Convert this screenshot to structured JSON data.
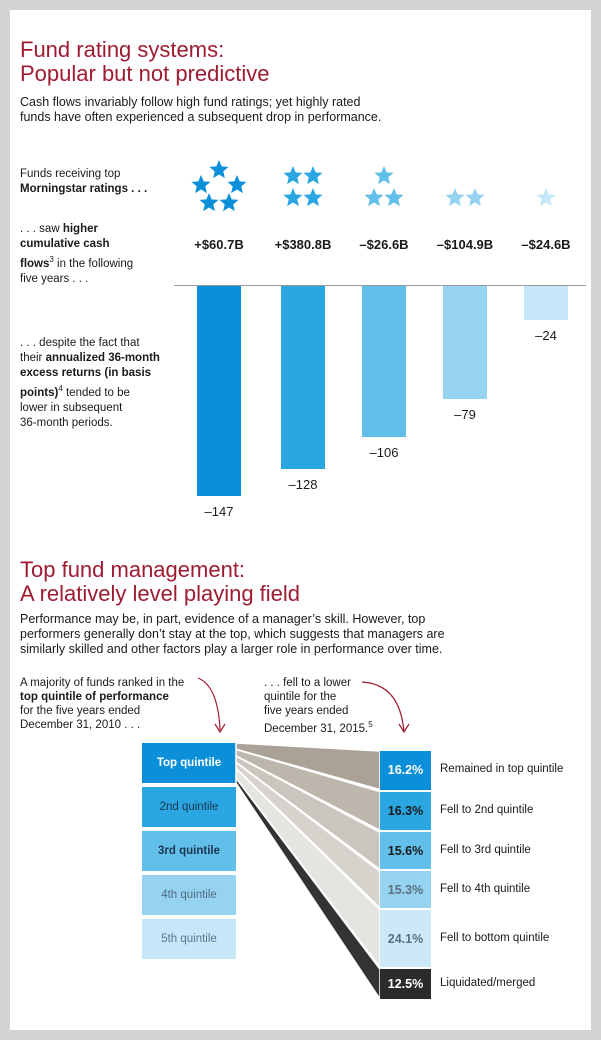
{
  "section1": {
    "title_line1": "Fund rating systems:",
    "title_line2": "Popular but not predictive",
    "subtitle_line1": "Cash flows invariably follow high fund ratings; yet highly rated",
    "subtitle_line2": "funds have often experienced a subsequent drop in performance.",
    "label_ratings_line1": "Funds receiving top",
    "label_ratings_line2": "Morningstar ratings . . .",
    "label_flows_line1_a": ". . . saw ",
    "label_flows_line1_b": "higher",
    "label_flows_line2": "cumulative cash",
    "label_flows_line3_a": "flows",
    "label_flows_line3_sup": "3",
    "label_flows_line3_b": " in the following",
    "label_flows_line4": "five years . . .",
    "label_returns_line1": ". . . despite the fact that",
    "label_returns_line2_a": "their ",
    "label_returns_line2_b": "annualized 36-month",
    "label_returns_line3": "excess returns (in basis",
    "label_returns_line4_a": "points)",
    "label_returns_line4_sup": "4",
    "label_returns_line4_b": " tended to be",
    "label_returns_line5": "lower in subsequent",
    "label_returns_line6": "36-month periods."
  },
  "chart_data": [
    {
      "type": "bar",
      "categories": [
        "5 stars",
        "4 stars",
        "3 stars",
        "2 stars",
        "1 star"
      ],
      "star_counts": [
        5,
        4,
        3,
        2,
        1
      ],
      "cash_flows": [
        "+$60.7B",
        "+$380.8B",
        "–$26.6B",
        "–$104.9B",
        "–$24.6B"
      ],
      "values": [
        -147,
        -128,
        -106,
        -79,
        -24
      ],
      "value_labels": [
        "–147",
        "–128",
        "–106",
        "–79",
        "–24"
      ],
      "ylim": [
        -160,
        0
      ],
      "colors": [
        "#0a8fd8",
        "#2aa6e2",
        "#62bfea",
        "#95d3f1",
        "#c6e7f7"
      ],
      "star_colors": [
        "#0a8fd8",
        "#2aa6e2",
        "#62bfea",
        "#95d3f1",
        "#c6e7f7"
      ]
    },
    {
      "type": "table",
      "quintiles": [
        "Top quintile",
        "2nd quintile",
        "3rd quintile",
        "4th quintile",
        "5th quintile"
      ],
      "outcomes": [
        {
          "percent": "16.2%",
          "value": 16.2,
          "label": "Remained in top quintile"
        },
        {
          "percent": "16.3%",
          "value": 16.3,
          "label": "Fell to 2nd quintile"
        },
        {
          "percent": "15.6%",
          "value": 15.6,
          "label": "Fell to  3rd quintile"
        },
        {
          "percent": "15.3%",
          "value": 15.3,
          "label": "Fell to 4th quintile"
        },
        {
          "percent": "24.1%",
          "value": 24.1,
          "label": "Fell to bottom quintile"
        },
        {
          "percent": "12.5%",
          "value": 12.5,
          "label": "Liquidated/merged"
        }
      ]
    }
  ],
  "section2": {
    "title_line1": "Top fund management:",
    "title_line2": "A relatively level playing field",
    "subtitle_line1": "Performance may be, in part, evidence of a manager’s skill. However, top",
    "subtitle_line2": "performers generally don’t stay at the top, which suggests that managers are",
    "subtitle_line3": "similarly skilled and other factors play a larger role in performance over time.",
    "note_left_line1": "A majority of funds ranked in the",
    "note_left_line2": "top quintile of performance",
    "note_left_line3": "for the five years ended",
    "note_left_line4": "December 31, 2010 . . .",
    "note_right_line1": ". . .  fell to a lower",
    "note_right_line2": "quintile for the",
    "note_right_line3": "five years ended",
    "note_right_line4": "December 31, 2015.",
    "note_right_sup": "5"
  }
}
